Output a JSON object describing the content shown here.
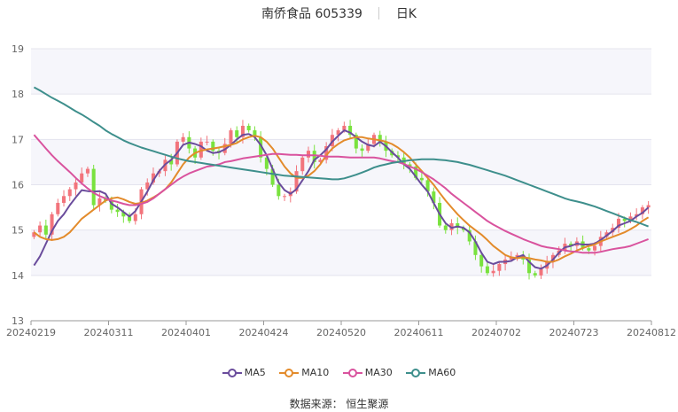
{
  "header": {
    "stock": "南侨食品 605339",
    "period": "日K"
  },
  "source": "数据来源： 恒生聚源",
  "chart_data": {
    "type": "candlestick",
    "ylim": [
      13,
      19
    ],
    "yticks": [
      "13",
      "14",
      "15",
      "16",
      "17",
      "18",
      "19"
    ],
    "xticks": [
      "20240219",
      "20240311",
      "20240401",
      "20240424",
      "20240520",
      "20240611",
      "20240702",
      "20240723",
      "20240812"
    ],
    "up_color": "#f2747c",
    "down_color": "#79e23e",
    "closes": [
      14.95,
      15.1,
      14.9,
      15.35,
      15.6,
      15.75,
      15.9,
      16.05,
      16.25,
      16.35,
      15.55,
      15.7,
      15.65,
      15.45,
      15.4,
      15.3,
      15.2,
      15.35,
      15.9,
      16.05,
      16.25,
      16.3,
      16.55,
      16.45,
      16.95,
      17.05,
      16.8,
      16.6,
      16.95,
      16.95,
      16.75,
      16.7,
      16.9,
      17.2,
      17.05,
      17.3,
      17.2,
      17.05,
      16.6,
      16.35,
      16.0,
      15.75,
      15.75,
      15.85,
      16.3,
      16.6,
      16.75,
      16.5,
      16.55,
      16.85,
      17.1,
      17.2,
      17.3,
      17.1,
      16.8,
      16.75,
      16.9,
      17.1,
      16.95,
      16.75,
      16.65,
      16.6,
      16.45,
      16.4,
      16.15,
      16.1,
      15.85,
      15.6,
      15.1,
      15.0,
      15.15,
      15.05,
      15.0,
      14.75,
      14.45,
      14.2,
      14.05,
      14.1,
      14.25,
      14.35,
      14.4,
      14.45,
      14.35,
      14.05,
      14.0,
      14.15,
      14.3,
      14.45,
      14.55,
      14.7,
      14.65,
      14.75,
      14.6,
      14.55,
      14.65,
      14.85,
      14.95,
      15.05,
      15.25,
      15.2,
      15.3,
      15.35,
      15.5,
      15.55
    ],
    "series": [
      {
        "name": "MA5",
        "color": "#6a4c9c",
        "values": [
          14.22,
          14.42,
          14.7,
          14.98,
          15.2,
          15.35,
          15.55,
          15.72,
          15.88,
          15.86,
          15.85,
          15.86,
          15.8,
          15.58,
          15.5,
          15.4,
          15.3,
          15.42,
          15.63,
          15.85,
          16.1,
          16.3,
          16.45,
          16.55,
          16.7,
          16.88,
          16.93,
          16.9,
          16.85,
          16.75,
          16.7,
          16.72,
          16.78,
          16.88,
          17.0,
          17.1,
          17.12,
          17.05,
          16.88,
          16.65,
          16.35,
          16.05,
          15.88,
          15.8,
          15.9,
          16.1,
          16.3,
          16.55,
          16.65,
          16.78,
          16.95,
          17.08,
          17.2,
          17.15,
          17.05,
          16.95,
          16.88,
          16.85,
          16.95,
          16.85,
          16.72,
          16.6,
          16.45,
          16.35,
          16.18,
          16.0,
          15.85,
          15.6,
          15.35,
          15.15,
          15.05,
          15.08,
          15.05,
          14.95,
          14.75,
          14.5,
          14.3,
          14.25,
          14.3,
          14.3,
          14.32,
          14.4,
          14.45,
          14.3,
          14.18,
          14.15,
          14.22,
          14.35,
          14.5,
          14.62,
          14.65,
          14.7,
          14.68,
          14.68,
          14.7,
          14.78,
          14.88,
          14.98,
          15.1,
          15.15,
          15.2,
          15.3,
          15.38,
          15.5
        ]
      },
      {
        "name": "MA10",
        "color": "#e38b2b",
        "values": [
          14.95,
          14.85,
          14.8,
          14.78,
          14.8,
          14.85,
          14.95,
          15.1,
          15.25,
          15.35,
          15.45,
          15.55,
          15.65,
          15.7,
          15.72,
          15.68,
          15.62,
          15.58,
          15.6,
          15.65,
          15.72,
          15.8,
          15.9,
          16.05,
          16.25,
          16.45,
          16.6,
          16.7,
          16.75,
          16.78,
          16.8,
          16.82,
          16.85,
          16.88,
          16.92,
          17.0,
          17.05,
          17.08,
          17.05,
          16.95,
          16.8,
          16.6,
          16.4,
          16.25,
          16.15,
          16.15,
          16.2,
          16.3,
          16.45,
          16.65,
          16.8,
          16.9,
          16.98,
          17.02,
          17.05,
          17.05,
          17.02,
          17.0,
          16.98,
          16.95,
          16.9,
          16.82,
          16.72,
          16.6,
          16.45,
          16.3,
          16.15,
          16.0,
          15.82,
          15.65,
          15.5,
          15.35,
          15.22,
          15.1,
          15.0,
          14.9,
          14.78,
          14.65,
          14.55,
          14.45,
          14.4,
          14.38,
          14.4,
          14.38,
          14.35,
          14.33,
          14.3,
          14.3,
          14.35,
          14.42,
          14.48,
          14.55,
          14.6,
          14.65,
          14.68,
          14.75,
          14.8,
          14.85,
          14.9,
          14.95,
          15.02,
          15.1,
          15.2,
          15.28
        ]
      },
      {
        "name": "MA30",
        "color": "#d9539e",
        "values": [
          17.1,
          16.95,
          16.8,
          16.65,
          16.52,
          16.4,
          16.28,
          16.15,
          16.03,
          15.92,
          15.82,
          15.75,
          15.7,
          15.65,
          15.62,
          15.58,
          15.55,
          15.55,
          15.58,
          15.62,
          15.7,
          15.8,
          15.9,
          16.0,
          16.1,
          16.18,
          16.25,
          16.3,
          16.35,
          16.4,
          16.42,
          16.45,
          16.5,
          16.52,
          16.55,
          16.58,
          16.6,
          16.62,
          16.64,
          16.66,
          16.68,
          16.68,
          16.67,
          16.66,
          16.66,
          16.65,
          16.65,
          16.65,
          16.64,
          16.62,
          16.62,
          16.62,
          16.61,
          16.6,
          16.6,
          16.6,
          16.6,
          16.6,
          16.58,
          16.55,
          16.52,
          16.5,
          16.46,
          16.4,
          16.35,
          16.28,
          16.2,
          16.12,
          16.02,
          15.92,
          15.8,
          15.7,
          15.6,
          15.5,
          15.4,
          15.3,
          15.2,
          15.12,
          15.05,
          14.98,
          14.92,
          14.86,
          14.8,
          14.75,
          14.7,
          14.65,
          14.62,
          14.6,
          14.58,
          14.55,
          14.53,
          14.52,
          14.5,
          14.5,
          14.5,
          14.52,
          14.55,
          14.58,
          14.6,
          14.62,
          14.65,
          14.7,
          14.75,
          14.8
        ]
      },
      {
        "name": "MA60",
        "color": "#3e8f8c",
        "values": [
          18.15,
          18.08,
          18.0,
          17.92,
          17.85,
          17.78,
          17.7,
          17.62,
          17.55,
          17.47,
          17.38,
          17.3,
          17.2,
          17.12,
          17.05,
          16.98,
          16.92,
          16.87,
          16.82,
          16.78,
          16.74,
          16.7,
          16.66,
          16.62,
          16.58,
          16.55,
          16.52,
          16.5,
          16.48,
          16.46,
          16.44,
          16.42,
          16.4,
          16.38,
          16.36,
          16.34,
          16.32,
          16.3,
          16.28,
          16.26,
          16.24,
          16.22,
          16.2,
          16.19,
          16.18,
          16.17,
          16.16,
          16.15,
          16.14,
          16.13,
          16.12,
          16.12,
          16.14,
          16.18,
          16.22,
          16.27,
          16.32,
          16.38,
          16.42,
          16.45,
          16.48,
          16.5,
          16.52,
          16.54,
          16.55,
          16.56,
          16.56,
          16.56,
          16.55,
          16.54,
          16.52,
          16.5,
          16.47,
          16.44,
          16.4,
          16.36,
          16.32,
          16.28,
          16.24,
          16.2,
          16.15,
          16.1,
          16.05,
          16.0,
          15.95,
          15.9,
          15.85,
          15.8,
          15.75,
          15.7,
          15.66,
          15.63,
          15.6,
          15.56,
          15.52,
          15.47,
          15.42,
          15.37,
          15.32,
          15.27,
          15.22,
          15.18,
          15.13,
          15.08
        ]
      }
    ]
  }
}
